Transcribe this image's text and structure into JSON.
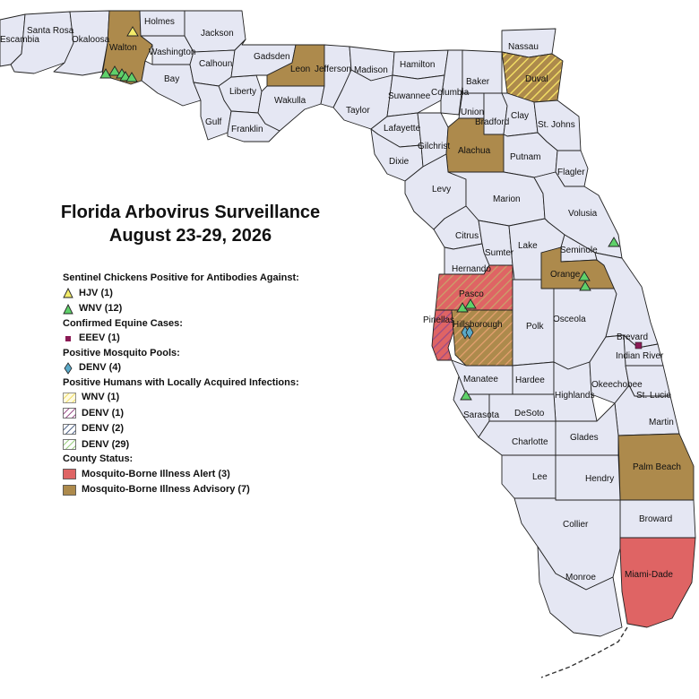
{
  "title": {
    "line1": "Florida Arbovirus Surveillance",
    "line2": "August 23-29, 2026"
  },
  "colors": {
    "county_default": "#e5e7f3",
    "advisory": "#ad8a4c",
    "alert": "#df6464",
    "hjv_symbol": "#f3ec6a",
    "wnv_symbol": "#5fd16a",
    "eeev_symbol": "#8b1a55",
    "denv_pool_symbol": "#5aa9c8",
    "wnv_hatch": "#f1dc64",
    "denv1_hatch": "#9a4b86",
    "denv2_hatch": "#27406e",
    "denv29_hatch": "#7ec35a"
  },
  "legend": {
    "chickens_heading": "Sentinel Chickens Positive for Antibodies Against:",
    "hjv": "HJV (1)",
    "wnv": "WNV (12)",
    "equine_heading": "Confirmed Equine Cases:",
    "eeev": "EEEV (1)",
    "pools_heading": "Positive Mosquito Pools:",
    "denv_pool": "DENV (4)",
    "humans_heading": "Positive Humans with Locally Acquired Infections:",
    "human_wnv": "WNV (1)",
    "human_denv1": "DENV (1)",
    "human_denv2": "DENV (2)",
    "human_denv29": "DENV (29)",
    "status_heading": "County Status:",
    "alert": "Mosquito-Borne Illness Alert (3)",
    "advisory": "Mosquito-Borne Illness Advisory (7)"
  },
  "counties": {
    "escambia": "Escambia",
    "santa_rosa": "Santa Rosa",
    "okaloosa": "Okaloosa",
    "walton": "Walton",
    "holmes": "Holmes",
    "washington": "Washington",
    "jackson": "Jackson",
    "bay": "Bay",
    "calhoun": "Calhoun",
    "gadsden": "Gadsden",
    "liberty": "Liberty",
    "gulf": "Gulf",
    "franklin": "Franklin",
    "leon": "Leon",
    "jefferson": "Jefferson",
    "wakulla": "Wakulla",
    "madison": "Madison",
    "hamilton": "Hamilton",
    "taylor": "Taylor",
    "suwannee": "Suwannee",
    "columbia": "Columbia",
    "baker": "Baker",
    "nassau": "Nassau",
    "duval": "Duval",
    "union": "Union",
    "bradford": "Bradford",
    "clay": "Clay",
    "st_johns": "St. Johns",
    "lafayette": "Lafayette",
    "gilchrist": "Gilchrist",
    "alachua": "Alachua",
    "putnam": "Putnam",
    "dixie": "Dixie",
    "flagler": "Flagler",
    "levy": "Levy",
    "marion": "Marion",
    "volusia": "Volusia",
    "citrus": "Citrus",
    "sumter": "Sumter",
    "lake": "Lake",
    "seminole": "Seminole",
    "orange": "Orange",
    "hernando": "Hernando",
    "pasco": "Pasco",
    "pinellas": "Pinellas",
    "hillsborough": "Hillsborough",
    "polk": "Polk",
    "osceola": "Osceola",
    "brevard": "Brevard",
    "indian_river": "Indian River",
    "manatee": "Manatee",
    "hardee": "Hardee",
    "highlands": "Highlands",
    "okeechobee": "Okeechobee",
    "st_lucie": "St. Lucie",
    "sarasota": "Sarasota",
    "desoto": "DeSoto",
    "martin": "Martin",
    "charlotte": "Charlotte",
    "glades": "Glades",
    "palm_beach": "Palm Beach",
    "lee": "Lee",
    "hendry": "Hendry",
    "broward": "Broward",
    "collier": "Collier",
    "miami_dade": "Miami-Dade",
    "monroe": "Monroe"
  }
}
